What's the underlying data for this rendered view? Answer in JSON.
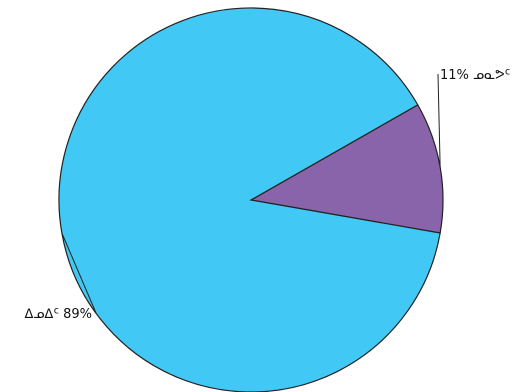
{
  "chart_data": {
    "type": "pie",
    "categories": [
      "ᓄᓇᕗᑦ",
      "ᐃᓄᐃᑦ"
    ],
    "values": [
      11,
      89
    ],
    "colors": [
      "#8a64ab",
      "#42c8f4"
    ],
    "data_labels": [
      "11% ᓄᓇᕗᑦ",
      "ᐃᓄᐃᑦ 89%"
    ],
    "title": "",
    "legend": "none"
  }
}
